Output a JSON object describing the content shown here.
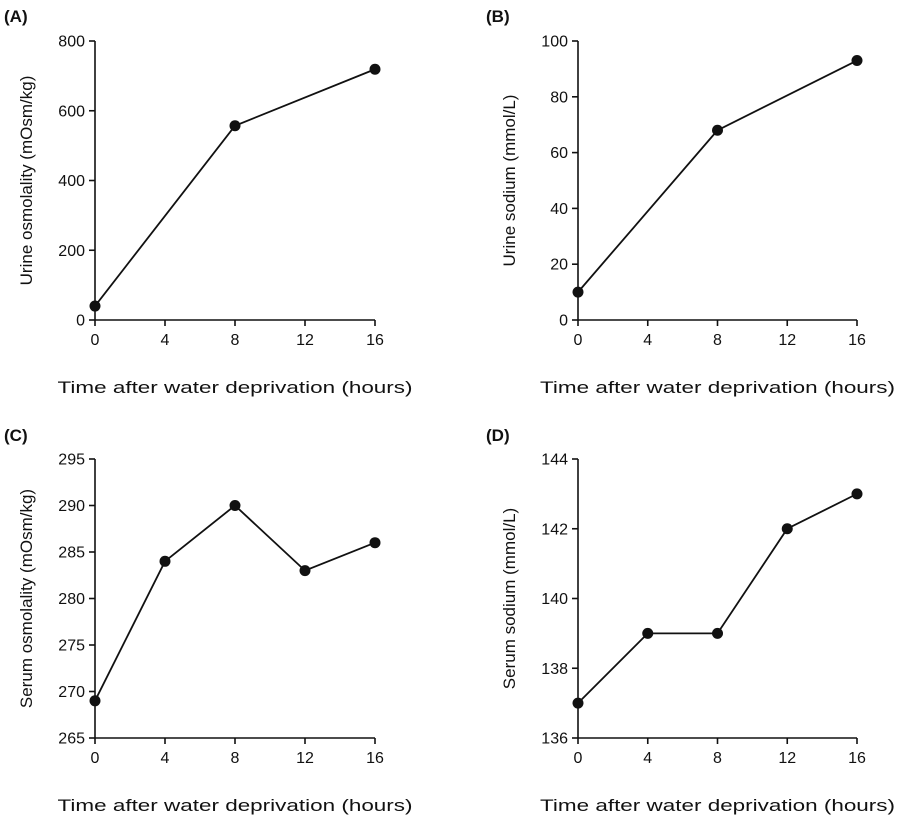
{
  "chart_data": [
    {
      "panel": "(A)",
      "type": "line",
      "x": [
        0,
        8,
        16
      ],
      "values": [
        40,
        557,
        719
      ],
      "xlabel": "Time after water deprivation (hours)",
      "ylabel": "Urine osmolality (mOsm/kg)",
      "xlim": [
        0,
        16
      ],
      "ylim": [
        0,
        800
      ],
      "xticks": [
        0,
        4,
        8,
        12,
        16
      ],
      "yticks": [
        0,
        200,
        400,
        600,
        800
      ],
      "grid": false
    },
    {
      "panel": "(B)",
      "type": "line",
      "x": [
        0,
        8,
        16
      ],
      "values": [
        10,
        68,
        93
      ],
      "xlabel": "Time after water deprivation (hours)",
      "ylabel": "Urine sodium (mmol/L)",
      "xlim": [
        0,
        16
      ],
      "ylim": [
        0,
        100
      ],
      "xticks": [
        0,
        4,
        8,
        12,
        16
      ],
      "yticks": [
        0,
        20,
        40,
        60,
        80,
        100
      ],
      "grid": false
    },
    {
      "panel": "(C)",
      "type": "line",
      "x": [
        0,
        4,
        8,
        12,
        16
      ],
      "values": [
        269,
        284,
        290,
        283,
        286
      ],
      "xlabel": "Time after water deprivation (hours)",
      "ylabel": "Serum osmolality (mOsm/kg)",
      "xlim": [
        0,
        16
      ],
      "ylim": [
        265,
        295
      ],
      "xticks": [
        0,
        4,
        8,
        12,
        16
      ],
      "yticks": [
        265,
        270,
        275,
        280,
        285,
        290,
        295
      ],
      "grid": false
    },
    {
      "panel": "(D)",
      "type": "line",
      "x": [
        0,
        4,
        8,
        12,
        16
      ],
      "values": [
        137,
        139,
        139,
        142,
        143
      ],
      "xlabel": "Time after water deprivation (hours)",
      "ylabel": "Serum sodium (mmol/L)",
      "xlim": [
        0,
        16
      ],
      "ylim": [
        136,
        144
      ],
      "xticks": [
        0,
        4,
        8,
        12,
        16
      ],
      "yticks": [
        136,
        138,
        140,
        142,
        144
      ],
      "grid": false
    }
  ]
}
